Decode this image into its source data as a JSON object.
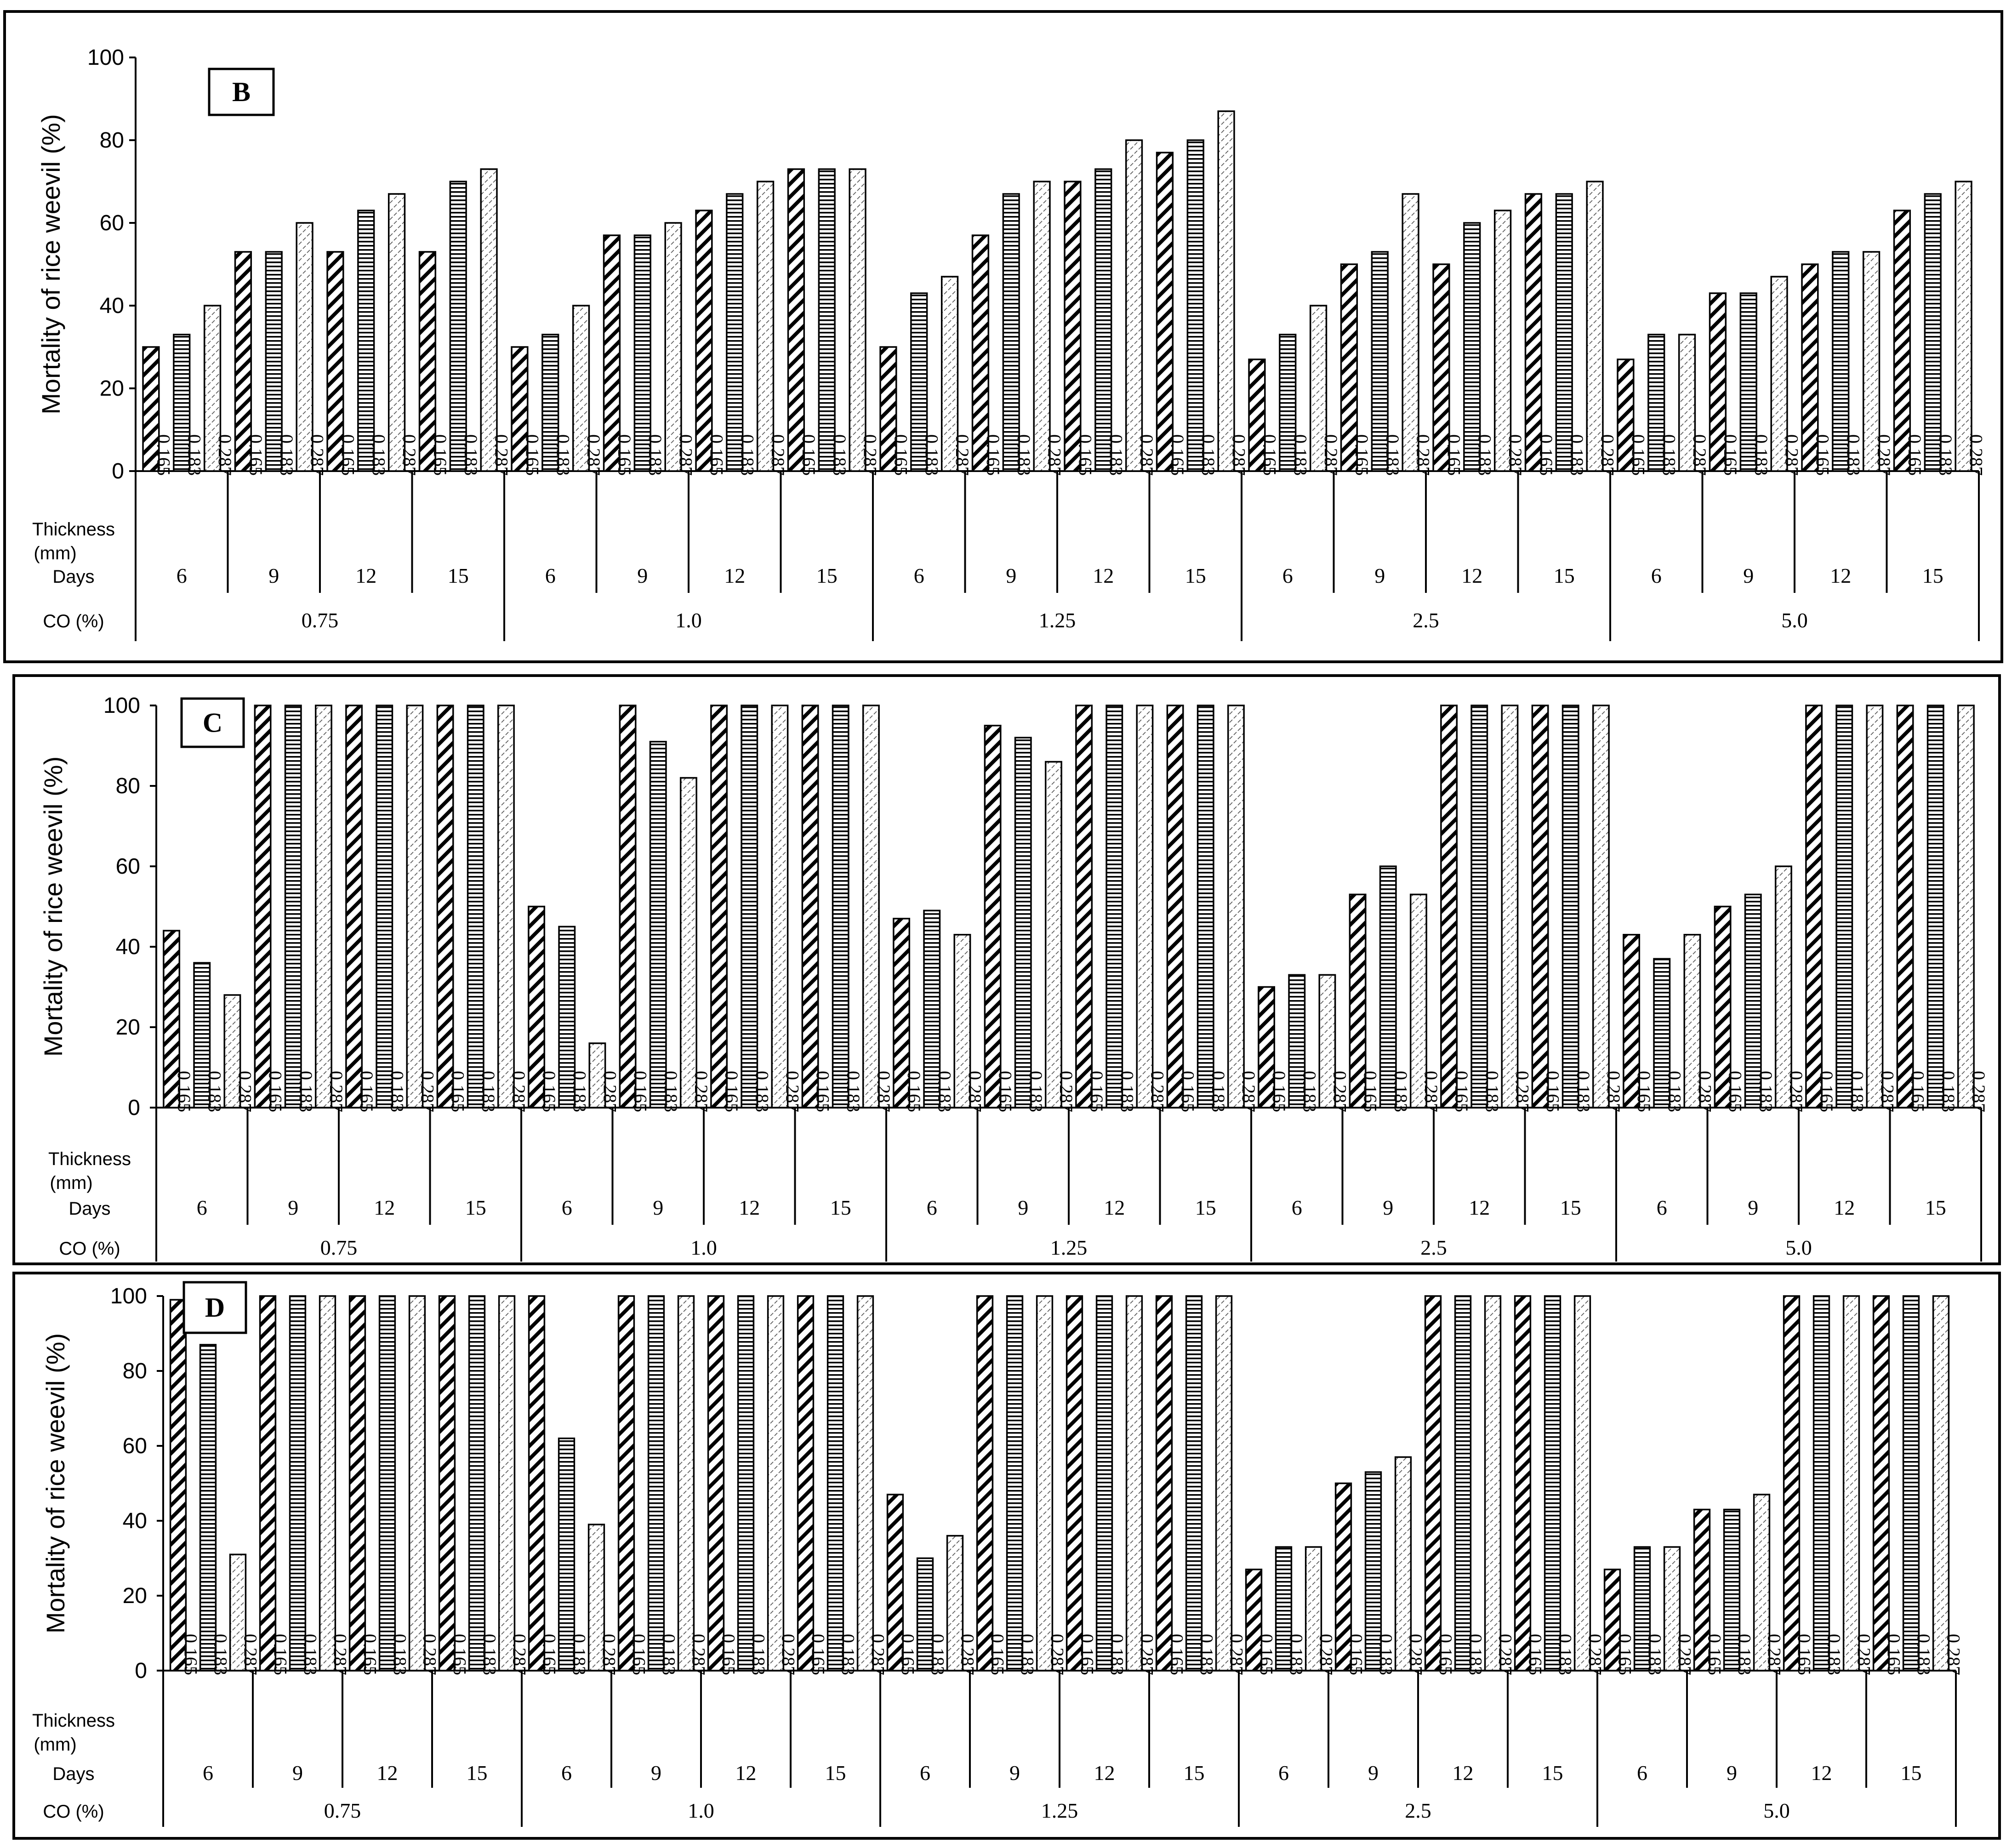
{
  "labels": {
    "y_axis": "Mortality of rice weevil (%)",
    "thickness_row": [
      "Thickness",
      "(mm)"
    ],
    "days_row": "Days",
    "co_row": "CO (%)"
  },
  "styles": {
    "hatch_color": "#000000",
    "background": "#ffffff"
  },
  "chart_data": [
    {
      "type": "bar",
      "panel_label": "B",
      "ylim": [
        0,
        100
      ],
      "yticks": [
        0,
        20,
        40,
        60,
        80,
        100
      ],
      "ylabel": "Mortality of rice weevil (%)",
      "co_levels": [
        "0.75",
        "1.0",
        "1.25",
        "2.5",
        "5.0"
      ],
      "days": [
        "6",
        "9",
        "12",
        "15"
      ],
      "thickness_mm": [
        "0.165",
        "0.183",
        "0.287"
      ],
      "values": [
        [
          [
            30,
            33,
            40
          ],
          [
            53,
            53,
            60
          ],
          [
            53,
            63,
            67
          ],
          [
            53,
            70,
            73
          ]
        ],
        [
          [
            30,
            33,
            40
          ],
          [
            57,
            57,
            60
          ],
          [
            63,
            67,
            70
          ],
          [
            73,
            73,
            73
          ]
        ],
        [
          [
            30,
            43,
            47
          ],
          [
            57,
            67,
            70
          ],
          [
            70,
            73,
            80
          ],
          [
            77,
            80,
            87
          ]
        ],
        [
          [
            27,
            33,
            40
          ],
          [
            50,
            53,
            67
          ],
          [
            50,
            60,
            63
          ],
          [
            67,
            67,
            70
          ]
        ],
        [
          [
            27,
            33,
            33
          ],
          [
            43,
            43,
            47
          ],
          [
            50,
            53,
            53
          ],
          [
            63,
            67,
            70
          ]
        ]
      ]
    },
    {
      "type": "bar",
      "panel_label": "C",
      "ylim": [
        0,
        100
      ],
      "yticks": [
        0,
        20,
        40,
        60,
        80,
        100
      ],
      "ylabel": "Mortality of rice weevil (%)",
      "co_levels": [
        "0.75",
        "1.0",
        "1.25",
        "2.5",
        "5.0"
      ],
      "days": [
        "6",
        "9",
        "12",
        "15"
      ],
      "thickness_mm": [
        "0.165",
        "0.183",
        "0.287"
      ],
      "values": [
        [
          [
            44,
            36,
            28
          ],
          [
            100,
            100,
            100
          ],
          [
            100,
            100,
            100
          ],
          [
            100,
            100,
            100
          ]
        ],
        [
          [
            50,
            45,
            16
          ],
          [
            100,
            91,
            82
          ],
          [
            100,
            100,
            100
          ],
          [
            100,
            100,
            100
          ]
        ],
        [
          [
            47,
            49,
            43
          ],
          [
            95,
            92,
            86
          ],
          [
            100,
            100,
            100
          ],
          [
            100,
            100,
            100
          ]
        ],
        [
          [
            30,
            33,
            33
          ],
          [
            53,
            60,
            53
          ],
          [
            100,
            100,
            100
          ],
          [
            100,
            100,
            100
          ]
        ],
        [
          [
            43,
            37,
            43
          ],
          [
            50,
            53,
            60
          ],
          [
            100,
            100,
            100
          ],
          [
            100,
            100,
            100
          ]
        ]
      ]
    },
    {
      "type": "bar",
      "panel_label": "D",
      "ylim": [
        0,
        100
      ],
      "yticks": [
        0,
        20,
        40,
        60,
        80,
        100
      ],
      "ylabel": "Mortality of rice weevil (%)",
      "co_levels": [
        "0.75",
        "1.0",
        "1.25",
        "2.5",
        "5.0"
      ],
      "days": [
        "6",
        "9",
        "12",
        "15"
      ],
      "thickness_mm": [
        "0.165",
        "0.183",
        "0.287"
      ],
      "values": [
        [
          [
            99,
            87,
            31
          ],
          [
            100,
            100,
            100
          ],
          [
            100,
            100,
            100
          ],
          [
            100,
            100,
            100
          ]
        ],
        [
          [
            100,
            62,
            39
          ],
          [
            100,
            100,
            100
          ],
          [
            100,
            100,
            100
          ],
          [
            100,
            100,
            100
          ]
        ],
        [
          [
            47,
            30,
            36
          ],
          [
            100,
            100,
            100
          ],
          [
            100,
            100,
            100
          ],
          [
            100,
            100,
            100
          ]
        ],
        [
          [
            27,
            33,
            33
          ],
          [
            50,
            53,
            57
          ],
          [
            100,
            100,
            100
          ],
          [
            100,
            100,
            100
          ]
        ],
        [
          [
            27,
            33,
            33
          ],
          [
            43,
            43,
            47
          ],
          [
            100,
            100,
            100
          ],
          [
            100,
            100,
            100
          ]
        ]
      ]
    }
  ]
}
